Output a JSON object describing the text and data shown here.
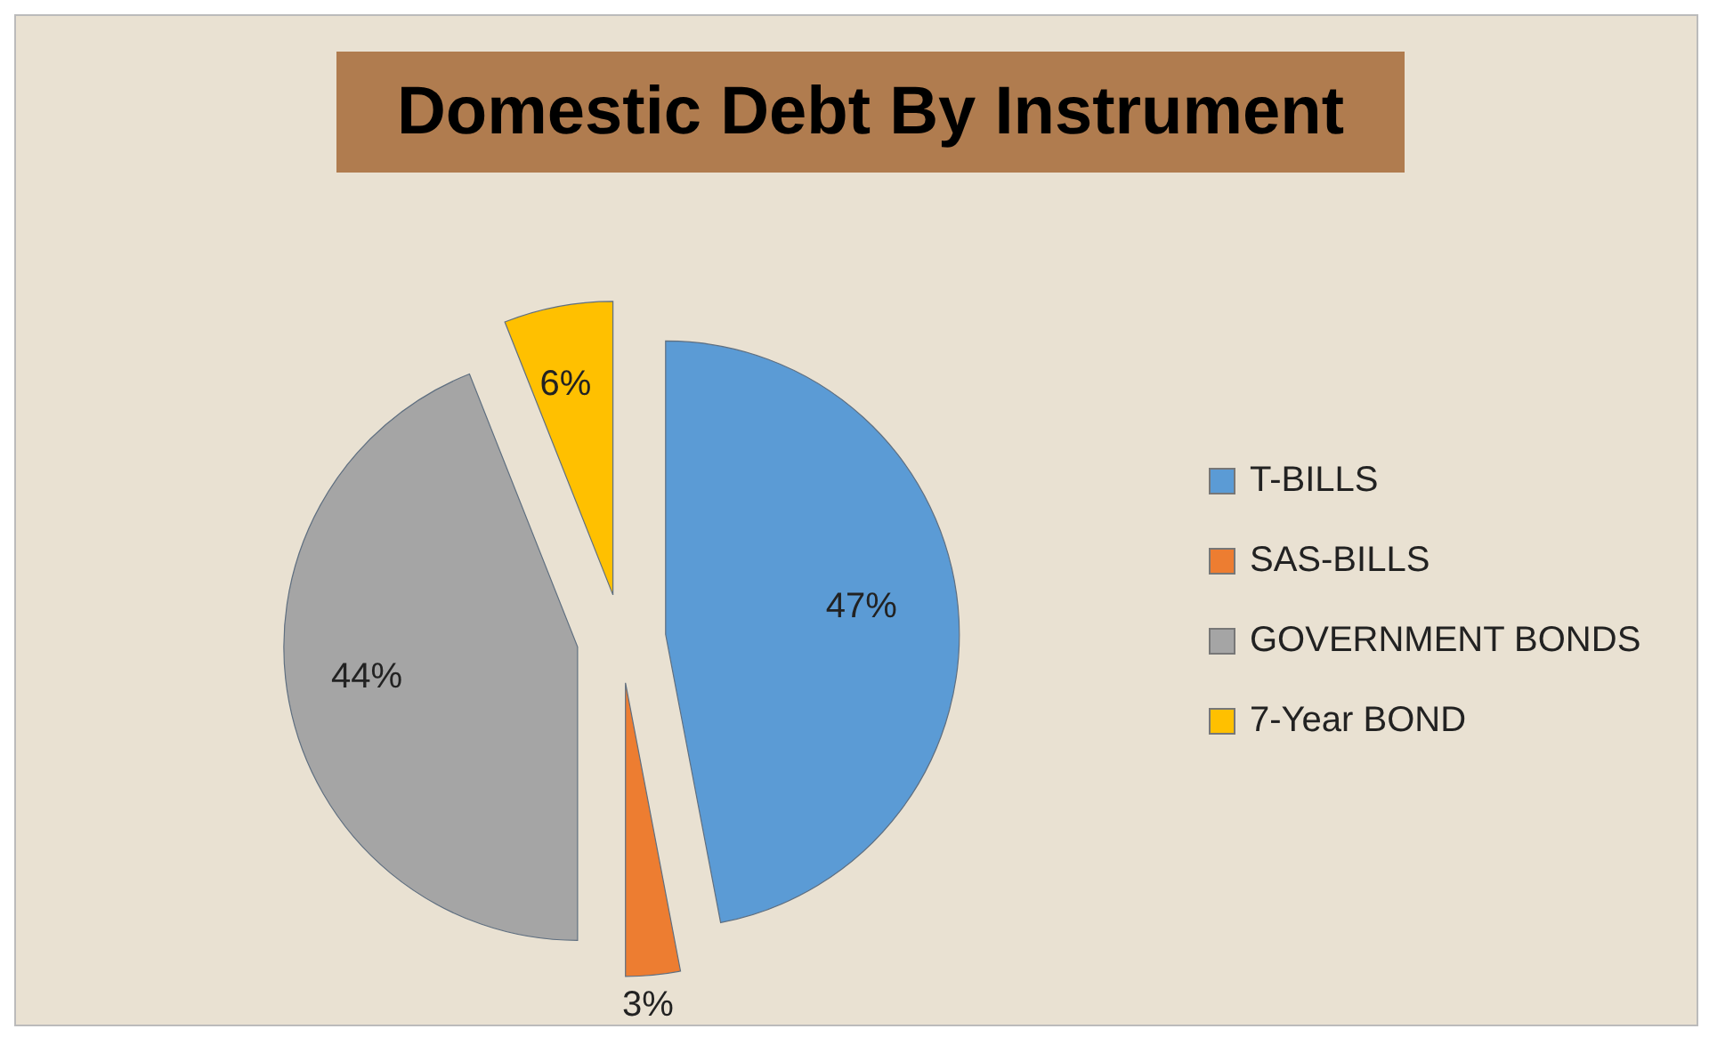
{
  "chart_data": {
    "type": "pie",
    "title": "Domestic Debt By Instrument",
    "categories": [
      "T-BILLS",
      "SAS-BILLS",
      "GOVERNMENT BONDS",
      "7-Year BOND"
    ],
    "values": [
      47,
      3,
      44,
      6
    ],
    "colors": [
      "#5b9bd5",
      "#ed7d31",
      "#a5a5a5",
      "#ffc000"
    ],
    "value_labels": [
      "47%",
      "3%",
      "44%",
      "6%"
    ],
    "legend": "right"
  }
}
